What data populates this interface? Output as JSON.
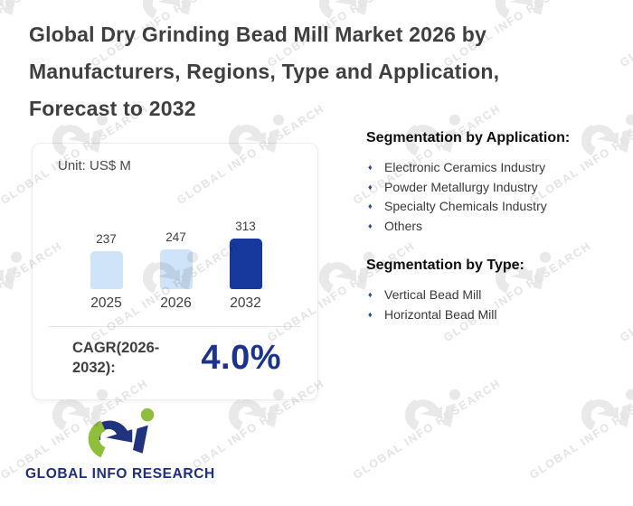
{
  "header": {
    "title": "Global Dry Grinding Bead Mill Market 2026 by Manufacturers, Regions, Type and Application, Forecast to 2032"
  },
  "chart_card": {
    "unit_label": "Unit: US$ M",
    "cagr_label": "CAGR(2026-2032):",
    "cagr_value": "4.0%"
  },
  "chart_data": {
    "type": "bar",
    "categories": [
      "2025",
      "2026",
      "2032"
    ],
    "values": [
      237,
      247,
      313
    ],
    "unit": "US$ M",
    "ylim": [
      0,
      330
    ],
    "grid": false,
    "legend": "none",
    "bar_colors": [
      "#cfe4f9",
      "#cfe4f9",
      "#17399e"
    ]
  },
  "segmentation": {
    "application": {
      "heading": "Segmentation by Application:",
      "items": [
        "Electronic Ceramics Industry",
        "Powder Metallurgy Industry",
        "Specialty Chemicals Industry",
        "Others"
      ]
    },
    "type": {
      "heading": "Segmentation by Type:",
      "items": [
        "Vertical Bead Mill",
        "Horizontal Bead Mill"
      ]
    }
  },
  "footer": {
    "logo_text": "GLOBAL INFO RESEARCH"
  },
  "watermark": {
    "text": "GLOBAL INFO RESEARCH"
  },
  "colors": {
    "title_text": "#3f3f3f",
    "bar_light_blue": "#cfe4f9",
    "bar_dark_blue": "#17399e",
    "accent_navy": "#1b3390",
    "bullet_navy": "#2b4a9e",
    "logo_navy": "#1c2e86",
    "logo_green": "#8fbe3a",
    "watermark_gray": "#e9e9e9"
  }
}
